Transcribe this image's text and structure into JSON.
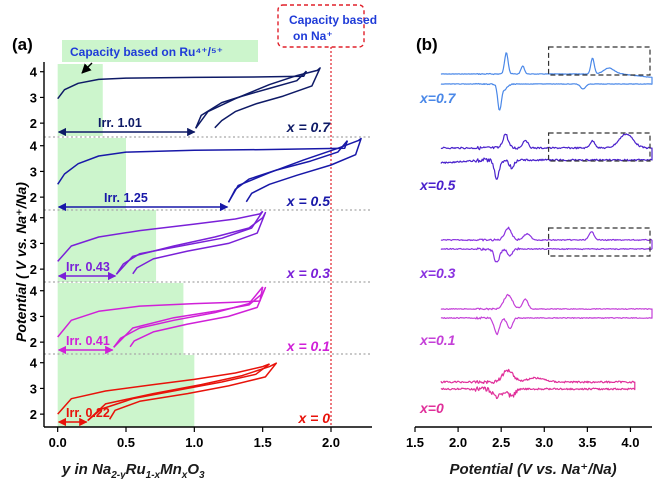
{
  "colors": {
    "green_fill": "#ccf5cc",
    "guide_red": "#e0202a",
    "separator": "#a8a8a8",
    "ru_banner_text": "#1f3bd8"
  },
  "annotations": {
    "ru_capacity": "Capacity based on Ru⁴⁺/⁵⁺",
    "na_capacity_line1": "Capacity based",
    "na_capacity_line2": "on Na⁺"
  },
  "chart_data": [
    {
      "panel": "(a)",
      "type": "line",
      "xlabel_parts": [
        "y in Na",
        "2-y",
        "Ru",
        "1-x",
        "Mn",
        "x",
        "O",
        "3"
      ],
      "ylabel": "Potential ( V vs. Na⁺/Na)",
      "xlim": [
        -0.1,
        2.3
      ],
      "x_ticks": [
        "0.0",
        "0.5",
        "1.0",
        "1.5",
        "2.0"
      ],
      "x_tick_values": [
        0.0,
        0.5,
        1.0,
        1.5,
        2.0
      ],
      "y_ticks_per_subplot": [
        "2",
        "3",
        "4"
      ],
      "ylim_per_subplot": [
        1.5,
        4.3
      ],
      "capacity_limit_line_x": 2.0,
      "subplots": [
        {
          "label": "x = 0.7",
          "color": "#0e1a66",
          "irr": 1.01,
          "irr_label": "Irr. 1.01",
          "green_to": 0.33,
          "charge1": [
            [
              0.0,
              2.95
            ],
            [
              0.05,
              3.3
            ],
            [
              0.15,
              3.55
            ],
            [
              0.3,
              3.7
            ],
            [
              0.5,
              3.75
            ],
            [
              1.0,
              3.78
            ],
            [
              1.5,
              3.8
            ],
            [
              1.8,
              3.82
            ],
            [
              1.82,
              4.02
            ]
          ],
          "discharge1": [
            [
              1.82,
              4.02
            ],
            [
              1.75,
              3.65
            ],
            [
              1.55,
              3.35
            ],
            [
              1.35,
              3.05
            ],
            [
              1.2,
              2.8
            ],
            [
              1.05,
              2.3
            ],
            [
              1.01,
              1.8
            ]
          ],
          "charge2": [
            [
              1.01,
              1.8
            ],
            [
              1.1,
              2.45
            ],
            [
              1.3,
              2.95
            ],
            [
              1.55,
              3.5
            ],
            [
              1.75,
              3.85
            ],
            [
              1.9,
              4.05
            ],
            [
              1.92,
              4.15
            ],
            [
              1.86,
              3.45
            ],
            [
              1.65,
              3.05
            ],
            [
              1.45,
              2.75
            ],
            [
              1.3,
              2.45
            ],
            [
              1.2,
              2.1
            ],
            [
              1.15,
              1.82
            ]
          ]
        },
        {
          "label": "x = 0.5",
          "color": "#1818a8",
          "irr": 1.25,
          "irr_label": "Irr. 1.25",
          "green_to": 0.5,
          "charge1": [
            [
              0.0,
              2.5
            ],
            [
              0.05,
              2.9
            ],
            [
              0.15,
              3.3
            ],
            [
              0.3,
              3.6
            ],
            [
              0.5,
              3.75
            ],
            [
              1.0,
              3.82
            ],
            [
              1.5,
              3.85
            ],
            [
              2.1,
              3.9
            ],
            [
              2.12,
              4.2
            ]
          ],
          "discharge1": [
            [
              2.12,
              4.2
            ],
            [
              2.05,
              3.75
            ],
            [
              1.85,
              3.4
            ],
            [
              1.6,
              3.05
            ],
            [
              1.4,
              2.7
            ],
            [
              1.3,
              2.3
            ],
            [
              1.25,
              1.8
            ]
          ],
          "charge2": [
            [
              1.25,
              1.8
            ],
            [
              1.32,
              2.45
            ],
            [
              1.55,
              2.95
            ],
            [
              1.8,
              3.45
            ],
            [
              2.05,
              3.9
            ],
            [
              2.2,
              4.2
            ],
            [
              2.22,
              4.28
            ],
            [
              2.18,
              3.65
            ],
            [
              2.0,
              3.25
            ],
            [
              1.75,
              2.85
            ],
            [
              1.55,
              2.5
            ],
            [
              1.42,
              2.15
            ],
            [
              1.38,
              1.82
            ]
          ]
        },
        {
          "label": "x = 0.3",
          "color": "#7a20d8",
          "irr": 0.43,
          "irr_label": "Irr. 0.43",
          "green_to": 0.72,
          "charge1": [
            [
              0.0,
              2.3
            ],
            [
              0.1,
              2.9
            ],
            [
              0.3,
              3.25
            ],
            [
              0.6,
              3.5
            ],
            [
              1.0,
              3.75
            ],
            [
              1.3,
              3.95
            ],
            [
              1.48,
              4.15
            ],
            [
              1.5,
              4.25
            ]
          ],
          "discharge1": [
            [
              1.5,
              4.25
            ],
            [
              1.42,
              3.6
            ],
            [
              1.2,
              3.2
            ],
            [
              0.9,
              2.9
            ],
            [
              0.6,
              2.6
            ],
            [
              0.48,
              2.2
            ],
            [
              0.43,
              1.8
            ]
          ],
          "charge2": [
            [
              0.43,
              1.8
            ],
            [
              0.55,
              2.5
            ],
            [
              0.85,
              2.9
            ],
            [
              1.15,
              3.25
            ],
            [
              1.4,
              3.6
            ],
            [
              1.5,
              4.0
            ],
            [
              1.52,
              4.2
            ],
            [
              1.46,
              3.4
            ],
            [
              1.25,
              3.0
            ],
            [
              0.95,
              2.7
            ],
            [
              0.7,
              2.4
            ],
            [
              0.58,
              2.05
            ],
            [
              0.55,
              1.82
            ]
          ]
        },
        {
          "label": "x = 0.1",
          "color": "#d020d8",
          "irr": 0.41,
          "irr_label": "Irr. 0.41",
          "green_to": 0.92,
          "charge1": [
            [
              0.0,
              2.2
            ],
            [
              0.1,
              2.85
            ],
            [
              0.3,
              3.2
            ],
            [
              0.6,
              3.4
            ],
            [
              1.0,
              3.5
            ],
            [
              1.3,
              3.55
            ],
            [
              1.48,
              3.6
            ],
            [
              1.5,
              4.15
            ]
          ],
          "discharge1": [
            [
              1.5,
              4.15
            ],
            [
              1.4,
              3.5
            ],
            [
              1.15,
              3.15
            ],
            [
              0.85,
              2.85
            ],
            [
              0.6,
              2.55
            ],
            [
              0.46,
              2.15
            ],
            [
              0.41,
              1.8
            ]
          ],
          "charge2": [
            [
              0.41,
              1.8
            ],
            [
              0.55,
              2.55
            ],
            [
              0.85,
              2.95
            ],
            [
              1.15,
              3.2
            ],
            [
              1.4,
              3.45
            ],
            [
              1.5,
              3.9
            ],
            [
              1.52,
              4.12
            ],
            [
              1.46,
              3.35
            ],
            [
              1.25,
              3.0
            ],
            [
              0.95,
              2.7
            ],
            [
              0.7,
              2.4
            ],
            [
              0.56,
              2.05
            ],
            [
              0.53,
              1.82
            ]
          ]
        },
        {
          "label": "x = 0",
          "color": "#e8120a",
          "irr": 0.22,
          "irr_label": "Irr. 0.22",
          "green_to": 1.0,
          "charge1": [
            [
              0.0,
              2.0
            ],
            [
              0.1,
              2.6
            ],
            [
              0.35,
              2.9
            ],
            [
              0.7,
              3.15
            ],
            [
              1.0,
              3.35
            ],
            [
              1.3,
              3.6
            ],
            [
              1.5,
              3.85
            ],
            [
              1.55,
              3.95
            ]
          ],
          "discharge1": [
            [
              1.55,
              3.95
            ],
            [
              1.45,
              3.55
            ],
            [
              1.2,
              3.25
            ],
            [
              0.9,
              2.95
            ],
            [
              0.55,
              2.6
            ],
            [
              0.32,
              2.2
            ],
            [
              0.22,
              1.75
            ]
          ],
          "charge2": [
            [
              0.22,
              1.75
            ],
            [
              0.35,
              2.4
            ],
            [
              0.7,
              2.8
            ],
            [
              1.05,
              3.15
            ],
            [
              1.35,
              3.5
            ],
            [
              1.55,
              3.85
            ],
            [
              1.6,
              3.98
            ],
            [
              1.52,
              3.45
            ],
            [
              1.25,
              3.1
            ],
            [
              0.95,
              2.8
            ],
            [
              0.6,
              2.5
            ],
            [
              0.42,
              2.15
            ],
            [
              0.38,
              1.8
            ]
          ]
        }
      ]
    },
    {
      "panel": "(b)",
      "type": "line",
      "xlabel": "Potential (V vs. Na⁺/Na)",
      "xlim": [
        1.5,
        4.25
      ],
      "x_ticks": [
        "1.5",
        "2.0",
        "2.5",
        "3.0",
        "3.5",
        "4.0"
      ],
      "x_tick_values": [
        1.5,
        2.0,
        2.5,
        3.0,
        3.5,
        4.0
      ],
      "traces": [
        {
          "label": "x=0.7",
          "color": "#4a88e8",
          "zoom_box": true
        },
        {
          "label": "x=0.5",
          "color": "#4a22cc",
          "zoom_box": true
        },
        {
          "label": "x=0.3",
          "color": "#8a32e0",
          "zoom_box": true
        },
        {
          "label": "x=0.1",
          "color": "#c440d8",
          "zoom_box": false
        },
        {
          "label": "x=0",
          "color": "#e0309a",
          "zoom_box": false
        }
      ]
    }
  ]
}
